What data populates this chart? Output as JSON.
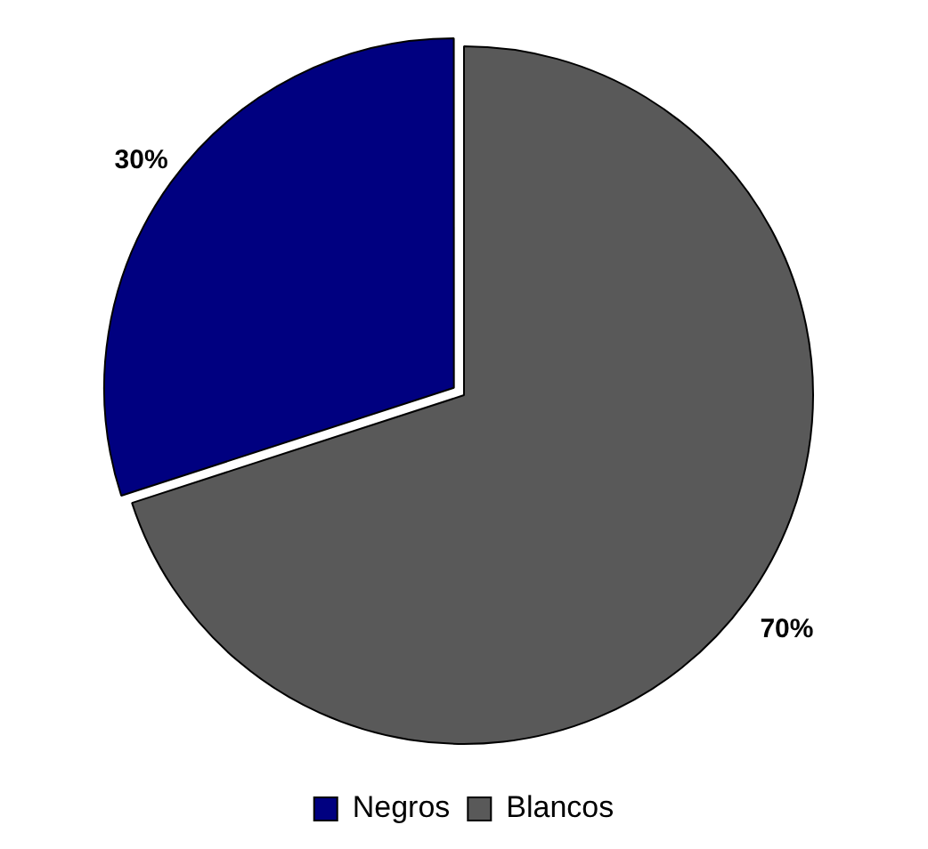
{
  "chart_data": {
    "type": "pie",
    "categories": [
      "Negros",
      "Blancos"
    ],
    "values": [
      30,
      70
    ],
    "colors": [
      "#000080",
      "#595959"
    ],
    "value_labels": [
      "30%",
      "70%"
    ],
    "legend": "bottom"
  }
}
